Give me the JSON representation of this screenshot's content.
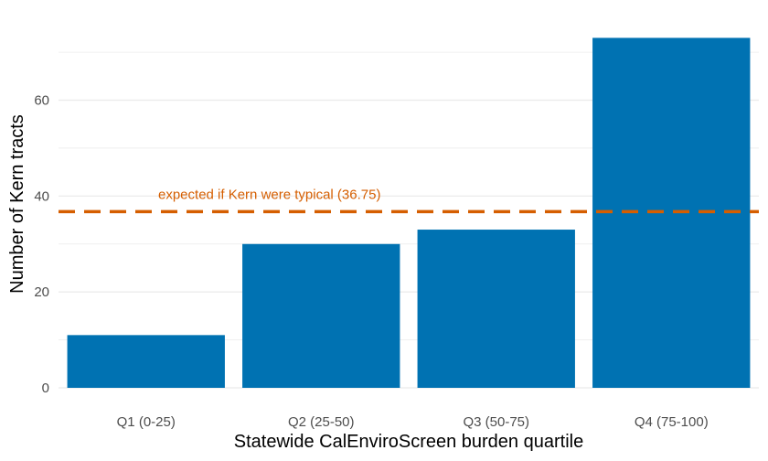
{
  "chart_data": {
    "type": "bar",
    "categories": [
      "Q1 (0-25)",
      "Q2 (25-50)",
      "Q3 (50-75)",
      "Q4 (75-100)"
    ],
    "values": [
      11,
      30,
      33,
      73
    ],
    "xlabel": "Statewide CalEnviroScreen burden quartile",
    "ylabel": "Number of Kern tracts",
    "ylim": [
      0,
      76.7
    ],
    "yticks": [
      0,
      20,
      40,
      60
    ],
    "grid": true,
    "bar_color": "#0072B2",
    "reference_line": {
      "value": 36.75,
      "label": "expected if Kern were typical (36.75)",
      "color": "#D55E00",
      "style": "dashed"
    }
  }
}
